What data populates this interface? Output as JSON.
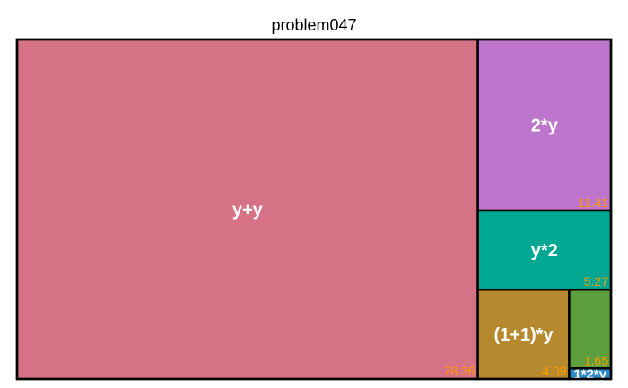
{
  "chart_data": {
    "type": "treemap",
    "title": "problem047",
    "items": [
      {
        "label": "y+y",
        "value_label": "78.36",
        "value": 78.36,
        "color": "#d57285"
      },
      {
        "label": "2*y",
        "value_label": "11.41",
        "value": 11.41,
        "color": "#be76cd"
      },
      {
        "label": "y*2",
        "value_label": "5.27",
        "value": 5.27,
        "color": "#00a793"
      },
      {
        "label": "(1+1)*y",
        "value_label": "4.09",
        "value": 4.09,
        "color": "#b6892e"
      },
      {
        "label": "",
        "value_label": "1.65",
        "value": 1.65,
        "color": "#5e9f3d"
      },
      {
        "label": "1*2*y",
        "value_label": "",
        "value": 0.22,
        "color": "#2f8cc9"
      }
    ],
    "value_label_color": "#ff9900"
  }
}
